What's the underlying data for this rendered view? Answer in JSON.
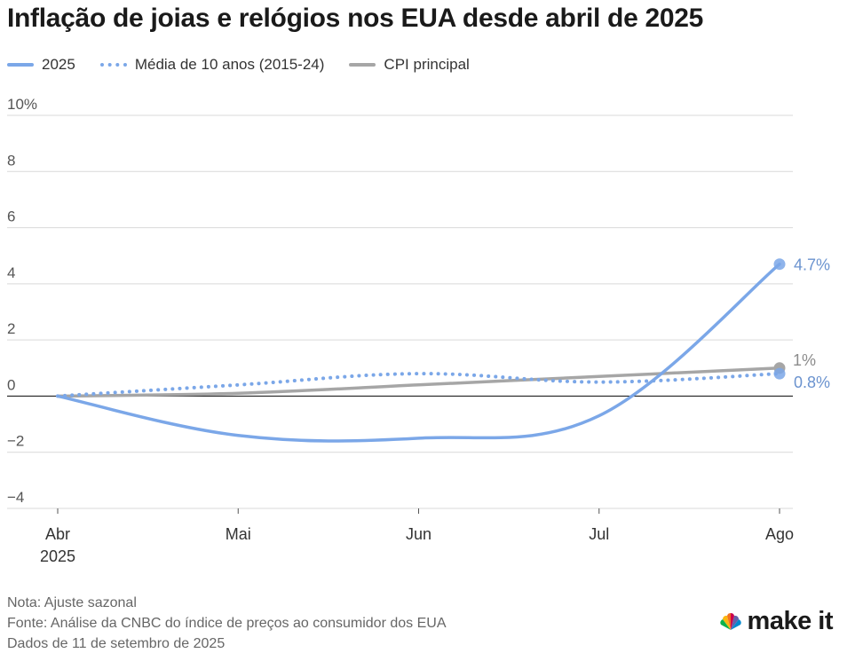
{
  "title": "Inflação de joias e relógios nos EUA desde abril de 2025",
  "legend": [
    {
      "label": "2025",
      "color": "#7ba7e8",
      "style": "solid"
    },
    {
      "label": "Média de 10 anos (2015-24)",
      "color": "#7ba7e8",
      "style": "dotted"
    },
    {
      "label": "CPI principal",
      "color": "#a6a6a6",
      "style": "solid"
    }
  ],
  "chart_data": {
    "type": "line",
    "categories": [
      "Abr",
      "Mai",
      "Jun",
      "Jul",
      "Ago"
    ],
    "x_sublabel": "2025",
    "y_ticks": [
      "10%",
      "8",
      "6",
      "4",
      "2",
      "0",
      "−2",
      "−4"
    ],
    "ylim": [
      -4,
      10
    ],
    "grid": true,
    "legend_position": "top-left",
    "series": [
      {
        "name": "2025",
        "values": [
          0,
          -1.4,
          -1.5,
          -0.7,
          4.7
        ],
        "color": "#7ba7e8",
        "style": "solid",
        "end_label": "4.7%"
      },
      {
        "name": "Média de 10 anos (2015-24)",
        "values": [
          0,
          0.4,
          0.8,
          0.5,
          0.8
        ],
        "color": "#7ba7e8",
        "style": "dotted",
        "end_label": "0.8%"
      },
      {
        "name": "CPI principal",
        "values": [
          0,
          0.1,
          0.4,
          0.7,
          1.0
        ],
        "color": "#a6a6a6",
        "style": "solid",
        "end_label": "1%"
      }
    ],
    "end_label_colors": {
      "2025": "#6b93cf",
      "Média de 10 anos (2015-24)": "#6b93cf",
      "CPI principal": "#8c8c8c"
    }
  },
  "notes": [
    "Nota: Ajuste sazonal",
    "Fonte: Análise da CNBC do índice de preços ao consumidor dos EUA",
    "Dados de 11 de setembro de 2025"
  ],
  "brand": {
    "small": "CNBC",
    "text": "make it"
  }
}
